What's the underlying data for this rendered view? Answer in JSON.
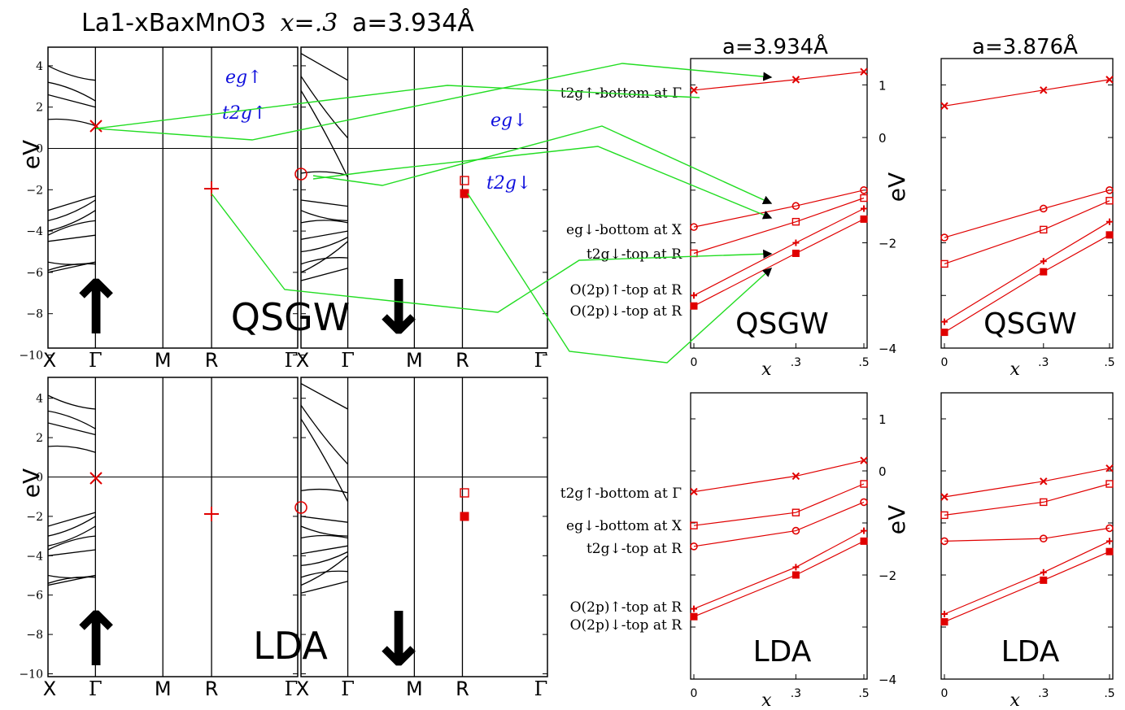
{
  "title": {
    "compound": "La1-xBaxMnO3",
    "xexpr": "x=.3",
    "aexpr": "a=3.934Å"
  },
  "band_panels": {
    "k_labels": [
      "X",
      "Γ",
      "M",
      "R",
      "Γ"
    ],
    "y_ticks": [
      4,
      2,
      0,
      -2,
      -4,
      -6,
      -8,
      -10
    ],
    "ylim": [
      -10,
      5
    ],
    "ylabel": "eV",
    "method_top": "QSGW",
    "method_bottom": "LDA",
    "spin_up_symbol": "↑",
    "spin_down_symbol": "↓",
    "ann_eg_up": "eg↑",
    "ann_t2g_up": "t2g↑",
    "ann_eg_down": "eg↓",
    "ann_t2g_down": "t2g↓"
  },
  "scatter_headers": {
    "left": "a=3.934Å",
    "right": "a=3.876Å"
  },
  "series_labels": {
    "qsgw": [
      "t2g↑-bottom at Γ",
      "eg↓-bottom at X",
      "t2g↓-top at R",
      "O(2p)↑-top at R",
      "O(2p)↓-top at R"
    ],
    "lda": [
      "t2g↑-bottom at Γ",
      "eg↓-bottom at X",
      "t2g↓-top at R",
      "O(2p)↑-top at R",
      "O(2p)↓-top at R"
    ]
  },
  "chart_data": [
    {
      "type": "scatter",
      "panel": "QSGW a=3.934Å",
      "title": "a=3.934Å",
      "xlabel": "x",
      "ylabel": "eV",
      "x": [
        0,
        0.3,
        0.5
      ],
      "xticks": [
        "0",
        ".3",
        ".5"
      ],
      "ylim": [
        -4,
        1.5
      ],
      "yticks": [
        1,
        0,
        -2,
        -4
      ],
      "series": [
        {
          "name": "t2g↑-bottom at Γ",
          "marker": "x",
          "values": [
            0.9,
            1.1,
            1.25
          ]
        },
        {
          "name": "eg↓-bottom at X",
          "marker": "circle",
          "values": [
            -1.7,
            -1.3,
            -1.0
          ]
        },
        {
          "name": "t2g↓-top at R",
          "marker": "square",
          "values": [
            -2.2,
            -1.6,
            -1.15
          ]
        },
        {
          "name": "O(2p)↑-top at R",
          "marker": "plus",
          "values": [
            -3.0,
            -2.0,
            -1.35
          ]
        },
        {
          "name": "O(2p)↓-top at R",
          "marker": "filled-square",
          "values": [
            -3.2,
            -2.2,
            -1.55
          ]
        }
      ]
    },
    {
      "type": "scatter",
      "panel": "QSGW a=3.876Å",
      "title": "a=3.876Å",
      "xlabel": "x",
      "x": [
        0,
        0.3,
        0.5
      ],
      "xticks": [
        "0",
        ".3",
        ".5"
      ],
      "ylim": [
        -4,
        1.5
      ],
      "series": [
        {
          "name": "t2g↑-bottom at Γ",
          "marker": "x",
          "values": [
            0.6,
            0.9,
            1.1
          ]
        },
        {
          "name": "eg↓-bottom at X",
          "marker": "circle",
          "values": [
            -1.9,
            -1.35,
            -1.0
          ]
        },
        {
          "name": "t2g↓-top at R",
          "marker": "square",
          "values": [
            -2.4,
            -1.75,
            -1.2
          ]
        },
        {
          "name": "O(2p)↑-top at R",
          "marker": "plus",
          "values": [
            -3.5,
            -2.35,
            -1.6
          ]
        },
        {
          "name": "O(2p)↓-top at R",
          "marker": "filled-square",
          "values": [
            -3.7,
            -2.55,
            -1.85
          ]
        }
      ]
    },
    {
      "type": "scatter",
      "panel": "LDA a=3.934Å",
      "xlabel": "x",
      "ylabel": "eV",
      "x": [
        0,
        0.3,
        0.5
      ],
      "xticks": [
        "0",
        ".3",
        ".5"
      ],
      "ylim": [
        -4,
        1.5
      ],
      "yticks": [
        1,
        0,
        -2,
        -4
      ],
      "series": [
        {
          "name": "t2g↑-bottom at Γ",
          "marker": "x",
          "values": [
            -0.4,
            -0.1,
            0.2
          ]
        },
        {
          "name": "eg↓-bottom at X",
          "marker": "square",
          "values": [
            -1.05,
            -0.8,
            -0.25
          ]
        },
        {
          "name": "t2g↓-top at R",
          "marker": "circle",
          "values": [
            -1.45,
            -1.15,
            -0.6
          ]
        },
        {
          "name": "O(2p)↑-top at R",
          "marker": "plus",
          "values": [
            -2.65,
            -1.85,
            -1.15
          ]
        },
        {
          "name": "O(2p)↓-top at R",
          "marker": "filled-square",
          "values": [
            -2.8,
            -2.0,
            -1.35
          ]
        }
      ]
    },
    {
      "type": "scatter",
      "panel": "LDA a=3.876Å",
      "xlabel": "x",
      "x": [
        0,
        0.3,
        0.5
      ],
      "xticks": [
        "0",
        ".3",
        ".5"
      ],
      "ylim": [
        -4,
        1.5
      ],
      "series": [
        {
          "name": "t2g↑-bottom at Γ",
          "marker": "x",
          "values": [
            -0.5,
            -0.2,
            0.05
          ]
        },
        {
          "name": "eg↓-bottom at X",
          "marker": "square",
          "values": [
            -0.85,
            -0.6,
            -0.25
          ]
        },
        {
          "name": "t2g↓-top at R",
          "marker": "circle",
          "values": [
            -1.35,
            -1.3,
            -1.1
          ]
        },
        {
          "name": "O(2p)↑-top at R",
          "marker": "plus",
          "values": [
            -2.75,
            -1.95,
            -1.35
          ]
        },
        {
          "name": "O(2p)↓-top at R",
          "marker": "filled-square",
          "values": [
            -2.9,
            -2.1,
            -1.55
          ]
        }
      ]
    }
  ],
  "colors": {
    "series": "#e00000",
    "connector": "#22dd22",
    "annotation": "#1111dd",
    "bands": "#000000"
  }
}
